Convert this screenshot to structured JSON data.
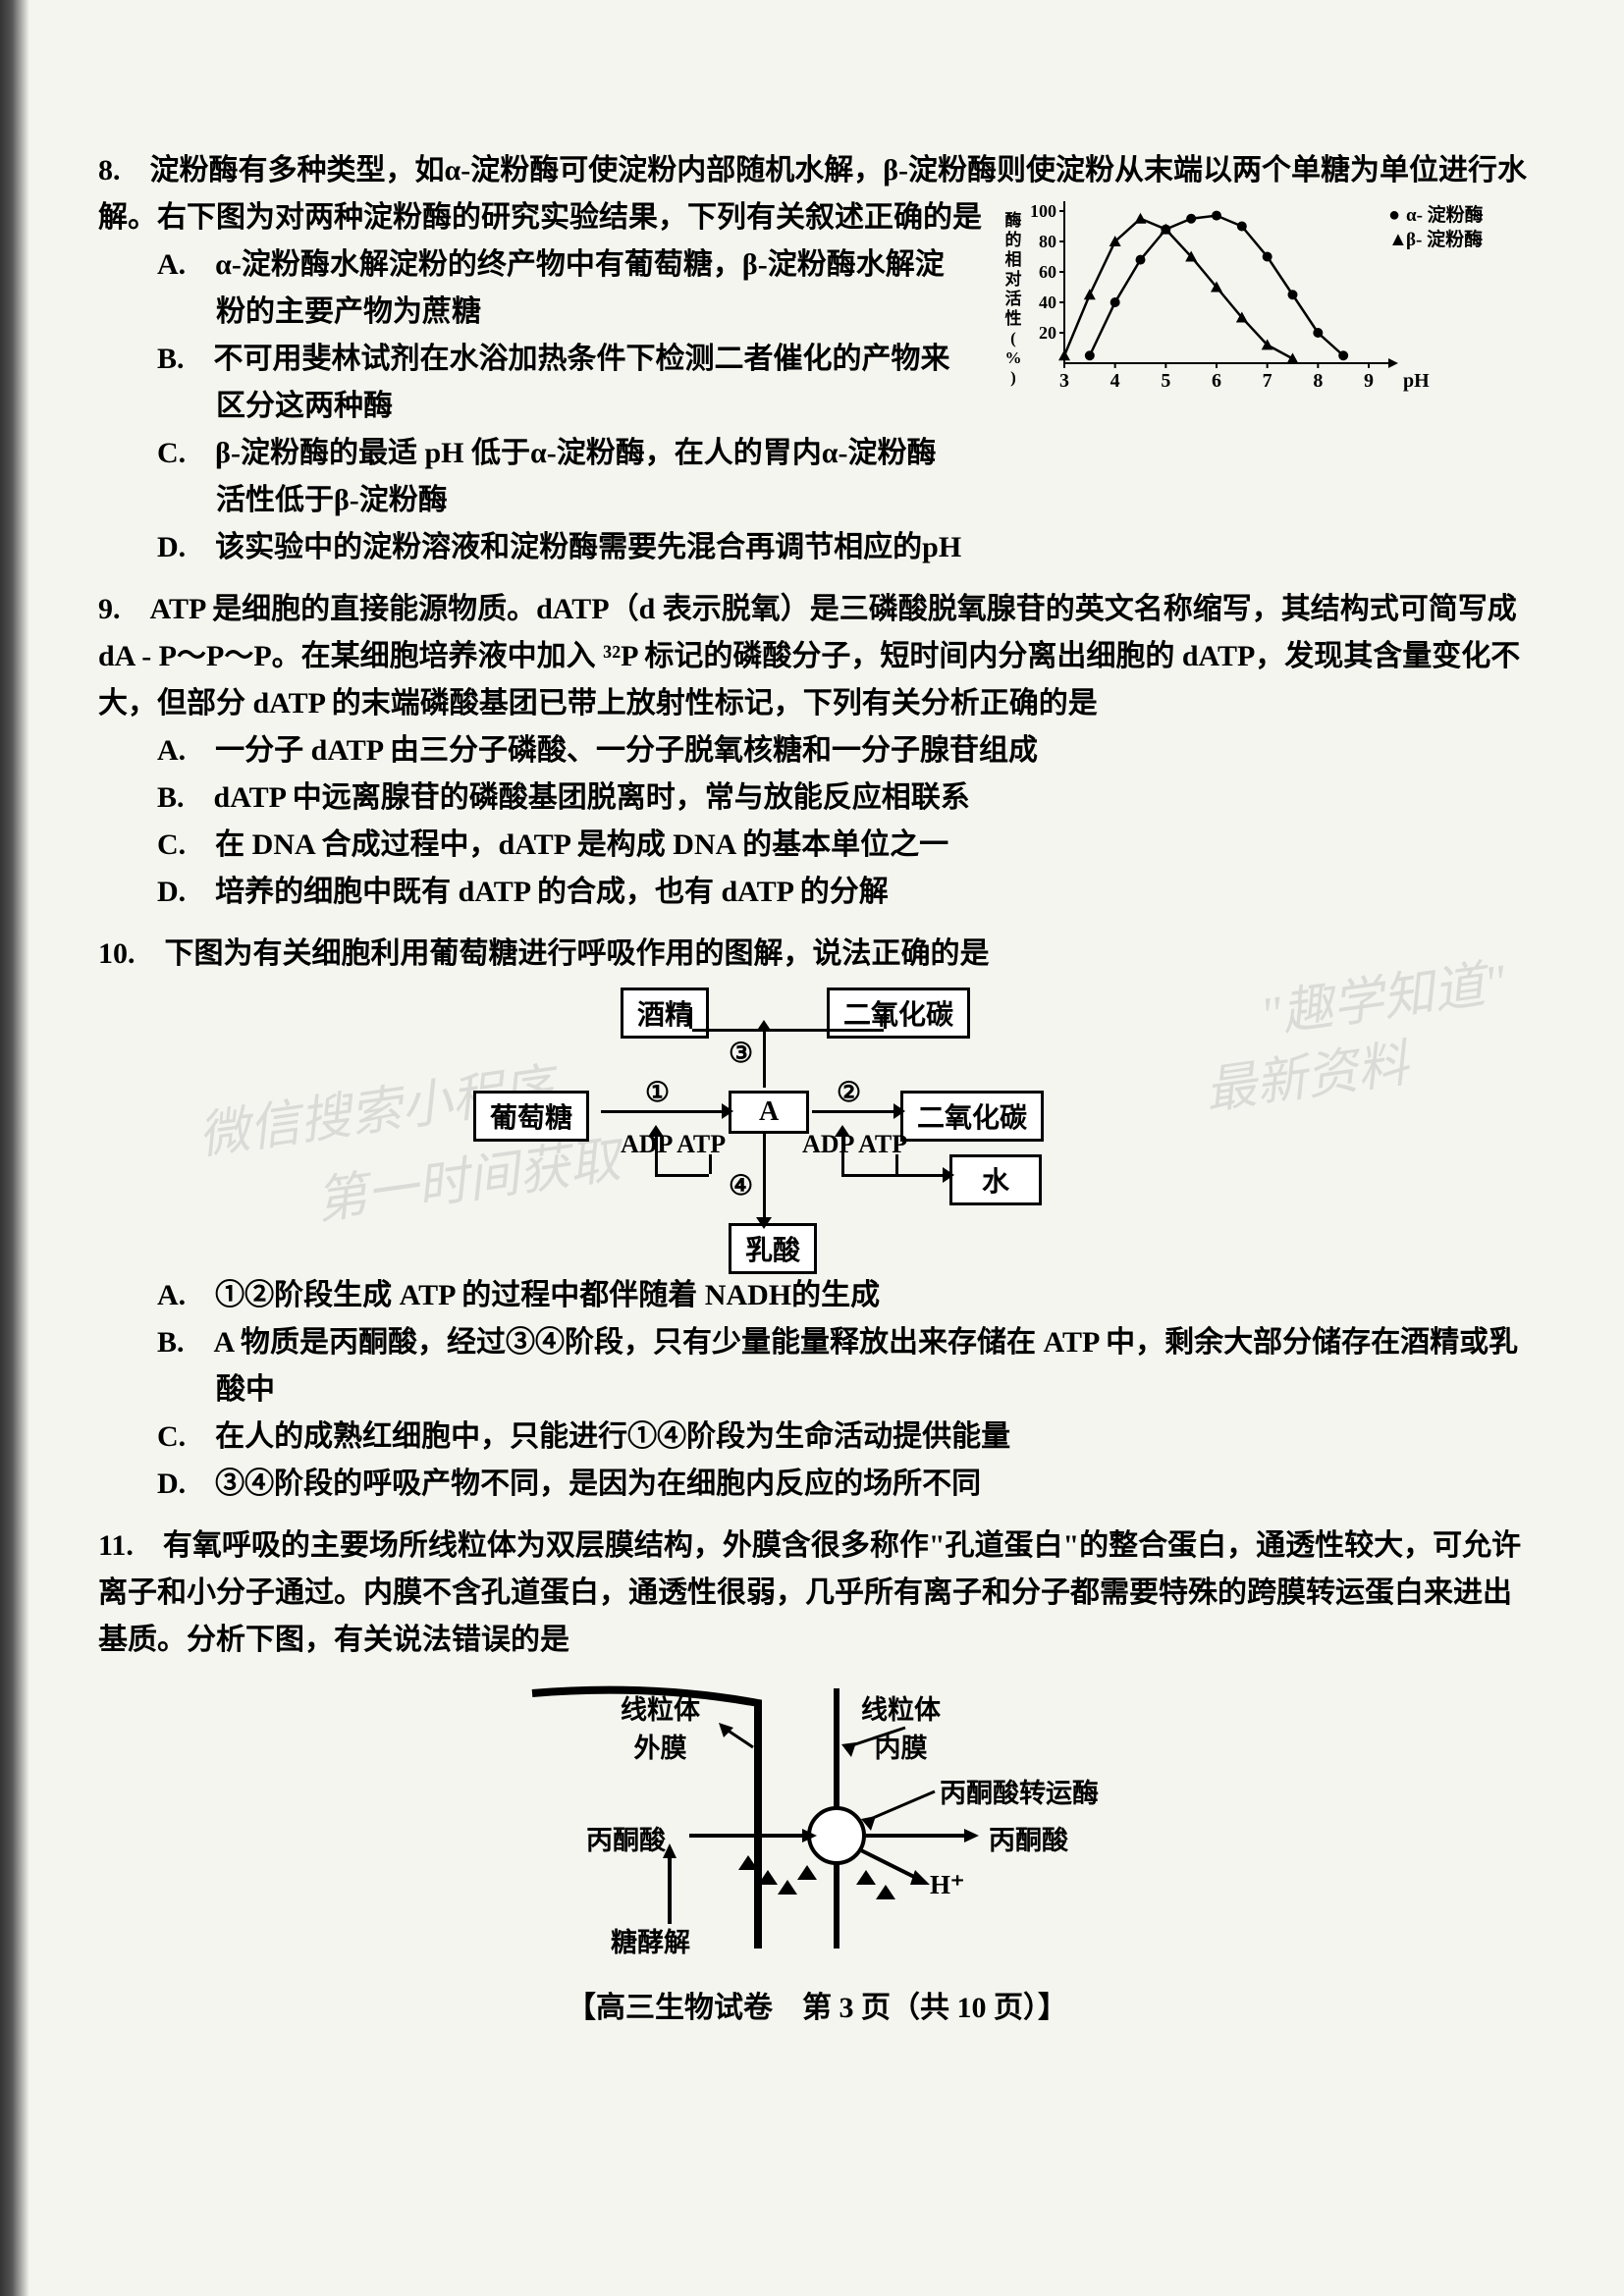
{
  "q8": {
    "intro": "8.　淀粉酶有多种类型，如α-淀粉酶可使淀粉内部随机水解，β-淀粉酶则使淀粉从末端以两个单糖为单位进行水解。右下图为对两种淀粉酶的研究实验结果，下列有关叙述正确的是",
    "optA": "A.　α-淀粉酶水解淀粉的终产物中有葡萄糖，β-淀粉酶水解淀粉的主要产物为蔗糖",
    "optB": "B.　不可用斐林试剂在水浴加热条件下检测二者催化的产物来区分这两种酶",
    "optC": "C.　β-淀粉酶的最适 pH 低于α-淀粉酶，在人的胃内α-淀粉酶活性低于β-淀粉酶",
    "optD": "D.　该实验中的淀粉溶液和淀粉酶需要先混合再调节相应的pH"
  },
  "chart": {
    "type": "line-scatter",
    "ylabel": "酶的相对活性(%)",
    "xlabel": "pH",
    "xlim": [
      3,
      9
    ],
    "ylim": [
      0,
      100
    ],
    "xticks": [
      3,
      4,
      5,
      6,
      7,
      8,
      9
    ],
    "yticks": [
      20,
      40,
      60,
      80,
      100
    ],
    "series": [
      {
        "name": "α- 淀粉酶",
        "marker": "circle",
        "color": "#000000",
        "points": [
          [
            3.5,
            5
          ],
          [
            4,
            40
          ],
          [
            4.5,
            68
          ],
          [
            5,
            88
          ],
          [
            5.5,
            95
          ],
          [
            6,
            97
          ],
          [
            6.5,
            90
          ],
          [
            7,
            70
          ],
          [
            7.5,
            45
          ],
          [
            8,
            20
          ],
          [
            8.5,
            5
          ]
        ]
      },
      {
        "name": "β- 淀粉酶",
        "marker": "triangle",
        "color": "#000000",
        "points": [
          [
            3,
            5
          ],
          [
            3.5,
            45
          ],
          [
            4,
            80
          ],
          [
            4.5,
            95
          ],
          [
            5,
            88
          ],
          [
            5.5,
            70
          ],
          [
            6,
            50
          ],
          [
            6.5,
            30
          ],
          [
            7,
            12
          ],
          [
            7.5,
            3
          ]
        ]
      }
    ],
    "legend_markers": {
      "alpha": "●",
      "beta": "▲"
    },
    "background": "#ffffff",
    "axis_color": "#000000"
  },
  "q9": {
    "intro": "9.　ATP 是细胞的直接能源物质。dATP（d 表示脱氧）是三磷酸脱氧腺苷的英文名称缩写，其结构式可简写成 dA - P～P～P。在某细胞培养液中加入 ³²P 标记的磷酸分子，短时间内分离出细胞的 dATP，发现其含量变化不大，但部分 dATP 的末端磷酸基团已带上放射性标记，下列有关分析正确的是",
    "optA": "A.　一分子 dATP 由三分子磷酸、一分子脱氧核糖和一分子腺苷组成",
    "optB": "B.　dATP 中远离腺苷的磷酸基团脱离时，常与放能反应相联系",
    "optC": "C.　在 DNA 合成过程中，dATP 是构成 DNA 的基本单位之一",
    "optD": "D.　培养的细胞中既有 dATP 的合成，也有 dATP 的分解"
  },
  "q10": {
    "intro": "10.　下图为有关细胞利用葡萄糖进行呼吸作用的图解，说法正确的是",
    "optA": "A.　①②阶段生成 ATP 的过程中都伴随着 NADH的生成",
    "optB": "B.　A 物质是丙酮酸，经过③④阶段，只有少量能量释放出来存储在 ATP 中，剩余大部分储存在酒精或乳酸中",
    "optC": "C.　在人的成熟红细胞中，只能进行①④阶段为生命活动提供能量",
    "optD": "D.　③④阶段的呼吸产物不同，是因为在细胞内反应的场所不同"
  },
  "diagram10": {
    "nodes": {
      "alcohol": "酒精",
      "co2_top": "二氧化碳",
      "glucose": "葡萄糖",
      "A": "A",
      "co2_mid": "二氧化碳",
      "water": "水",
      "lactic": "乳酸",
      "adpatp1": "ADP ATP",
      "adpatp2": "ADP ATP"
    },
    "circled": {
      "1": "①",
      "2": "②",
      "3": "③",
      "4": "④"
    }
  },
  "q11": {
    "intro": "11.　有氧呼吸的主要场所线粒体为双层膜结构，外膜含很多称作\"孔道蛋白\"的整合蛋白，通透性较大，可允许离子和小分子通过。内膜不含孔道蛋白，通透性很弱，几乎所有离子和分子都需要特殊的跨膜转运蛋白来进出基质。分析下图，有关说法错误的是"
  },
  "diagram11": {
    "labels": {
      "outer": "线粒体\n外膜",
      "inner": "线粒体\n内膜",
      "transporter": "丙酮酸转运酶",
      "pyruvate_l": "丙酮酸",
      "pyruvate_r": "丙酮酸",
      "h": "H⁺",
      "glycolysis": "糖酵解"
    }
  },
  "footer": "【高三生物试卷　第 3 页（共 10 页）】",
  "watermark": {
    "line1": "\"趣学知道\"",
    "line2": "最新资料",
    "line3": "微信搜索小程序",
    "line4": "第一时间获取"
  }
}
